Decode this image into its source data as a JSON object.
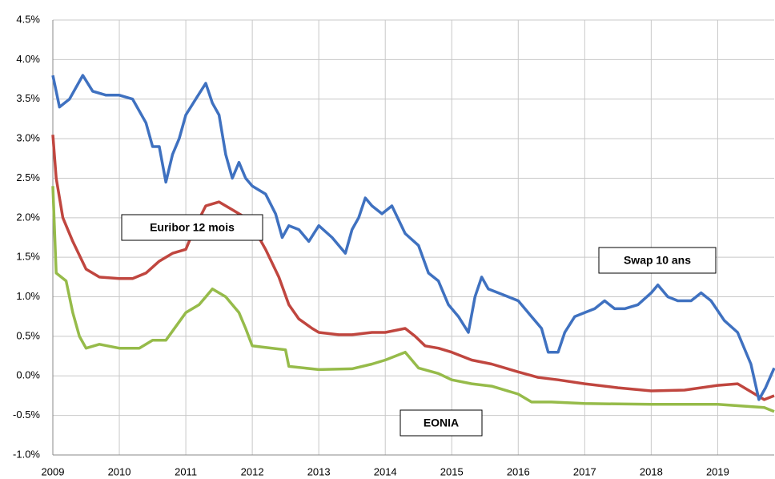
{
  "chart_data": {
    "type": "line",
    "annotations": [
      "Euribor 12 mois",
      "Swap 10 ans",
      "EONIA"
    ],
    "xlim": [
      2009,
      2019.85
    ],
    "xticks": [
      2009,
      2010,
      2011,
      2012,
      2013,
      2014,
      2015,
      2016,
      2017,
      2018,
      2019
    ],
    "ylim": [
      -1,
      4.5
    ],
    "yticks": [
      {
        "value": -1,
        "label": "-1.0%"
      },
      {
        "value": -0.5,
        "label": "-0.5%"
      },
      {
        "value": 0,
        "label": "0.0%"
      },
      {
        "value": 0.5,
        "label": "0.5%"
      },
      {
        "value": 1,
        "label": "1.0%"
      },
      {
        "value": 1.5,
        "label": "1.5%"
      },
      {
        "value": 2,
        "label": "2.0%"
      },
      {
        "value": 2.5,
        "label": "2.5%"
      },
      {
        "value": 3,
        "label": "3.0%"
      },
      {
        "value": 3.5,
        "label": "3.5%"
      },
      {
        "value": 4,
        "label": "4.0%"
      },
      {
        "value": 4.5,
        "label": "4.5%"
      }
    ],
    "grid": true,
    "series": [
      {
        "name": "Swap 10 ans",
        "color": "#3f71c0",
        "x": [
          2009.0,
          2009.1,
          2009.25,
          2009.45,
          2009.6,
          2009.8,
          2010.0,
          2010.2,
          2010.4,
          2010.5,
          2010.6,
          2010.7,
          2010.8,
          2010.9,
          2011.0,
          2011.15,
          2011.3,
          2011.4,
          2011.5,
          2011.6,
          2011.7,
          2011.8,
          2011.9,
          2012.0,
          2012.2,
          2012.35,
          2012.45,
          2012.55,
          2012.7,
          2012.85,
          2013.0,
          2013.2,
          2013.4,
          2013.5,
          2013.6,
          2013.7,
          2013.8,
          2013.95,
          2014.1,
          2014.3,
          2014.5,
          2014.65,
          2014.8,
          2014.95,
          2015.1,
          2015.25,
          2015.35,
          2015.45,
          2015.55,
          2015.7,
          2015.85,
          2016.0,
          2016.2,
          2016.35,
          2016.45,
          2016.6,
          2016.7,
          2016.85,
          2017.0,
          2017.15,
          2017.3,
          2017.45,
          2017.6,
          2017.8,
          2018.0,
          2018.1,
          2018.25,
          2018.4,
          2018.6,
          2018.75,
          2018.9,
          2019.1,
          2019.3,
          2019.5,
          2019.62,
          2019.72,
          2019.85
        ],
        "values": [
          3.8,
          3.4,
          3.5,
          3.8,
          3.6,
          3.55,
          3.55,
          3.5,
          3.2,
          2.9,
          2.9,
          2.45,
          2.8,
          3.0,
          3.3,
          3.5,
          3.7,
          3.45,
          3.3,
          2.8,
          2.5,
          2.7,
          2.5,
          2.4,
          2.3,
          2.05,
          1.75,
          1.9,
          1.85,
          1.7,
          1.9,
          1.75,
          1.55,
          1.85,
          2.0,
          2.25,
          2.15,
          2.05,
          2.15,
          1.8,
          1.65,
          1.3,
          1.2,
          0.9,
          0.75,
          0.55,
          1.0,
          1.25,
          1.1,
          1.05,
          1.0,
          0.95,
          0.75,
          0.6,
          0.3,
          0.3,
          0.55,
          0.75,
          0.8,
          0.85,
          0.95,
          0.85,
          0.85,
          0.9,
          1.05,
          1.15,
          1.0,
          0.95,
          0.95,
          1.05,
          0.95,
          0.7,
          0.55,
          0.15,
          -0.3,
          -0.15,
          0.1
        ]
      },
      {
        "name": "Euribor 12 mois",
        "color": "#c0463f",
        "x": [
          2009.0,
          2009.05,
          2009.15,
          2009.3,
          2009.5,
          2009.7,
          2010.0,
          2010.2,
          2010.4,
          2010.6,
          2010.8,
          2011.0,
          2011.15,
          2011.3,
          2011.5,
          2011.7,
          2011.9,
          2012.0,
          2012.2,
          2012.4,
          2012.55,
          2012.7,
          2012.9,
          2013.0,
          2013.3,
          2013.5,
          2013.8,
          2014.0,
          2014.3,
          2014.45,
          2014.6,
          2014.8,
          2015.0,
          2015.3,
          2015.6,
          2016.0,
          2016.3,
          2016.6,
          2017.0,
          2017.5,
          2018.0,
          2018.5,
          2019.0,
          2019.3,
          2019.5,
          2019.7,
          2019.85
        ],
        "values": [
          3.05,
          2.5,
          2.0,
          1.7,
          1.35,
          1.25,
          1.23,
          1.23,
          1.3,
          1.45,
          1.55,
          1.6,
          1.9,
          2.15,
          2.2,
          2.1,
          2.0,
          1.9,
          1.6,
          1.25,
          0.9,
          0.72,
          0.6,
          0.55,
          0.52,
          0.52,
          0.55,
          0.55,
          0.6,
          0.5,
          0.38,
          0.35,
          0.3,
          0.2,
          0.15,
          0.05,
          -0.02,
          -0.05,
          -0.1,
          -0.15,
          -0.19,
          -0.18,
          -0.12,
          -0.1,
          -0.2,
          -0.3,
          -0.25
        ]
      },
      {
        "name": "EONIA",
        "color": "#96bb4a",
        "x": [
          2009.0,
          2009.05,
          2009.2,
          2009.3,
          2009.4,
          2009.5,
          2009.7,
          2010.0,
          2010.3,
          2010.5,
          2010.7,
          2011.0,
          2011.2,
          2011.4,
          2011.6,
          2011.8,
          2011.9,
          2012.0,
          2012.3,
          2012.5,
          2012.55,
          2013.0,
          2013.5,
          2013.8,
          2014.0,
          2014.3,
          2014.5,
          2014.8,
          2015.0,
          2015.3,
          2015.6,
          2016.0,
          2016.2,
          2016.5,
          2017.0,
          2018.0,
          2019.0,
          2019.7,
          2019.85
        ],
        "values": [
          2.4,
          1.3,
          1.2,
          0.8,
          0.5,
          0.35,
          0.4,
          0.35,
          0.35,
          0.45,
          0.45,
          0.8,
          0.9,
          1.1,
          1.0,
          0.8,
          0.6,
          0.38,
          0.35,
          0.33,
          0.12,
          0.08,
          0.09,
          0.15,
          0.2,
          0.3,
          0.1,
          0.03,
          -0.05,
          -0.1,
          -0.13,
          -0.23,
          -0.33,
          -0.33,
          -0.35,
          -0.36,
          -0.36,
          -0.4,
          -0.45
        ]
      }
    ]
  }
}
